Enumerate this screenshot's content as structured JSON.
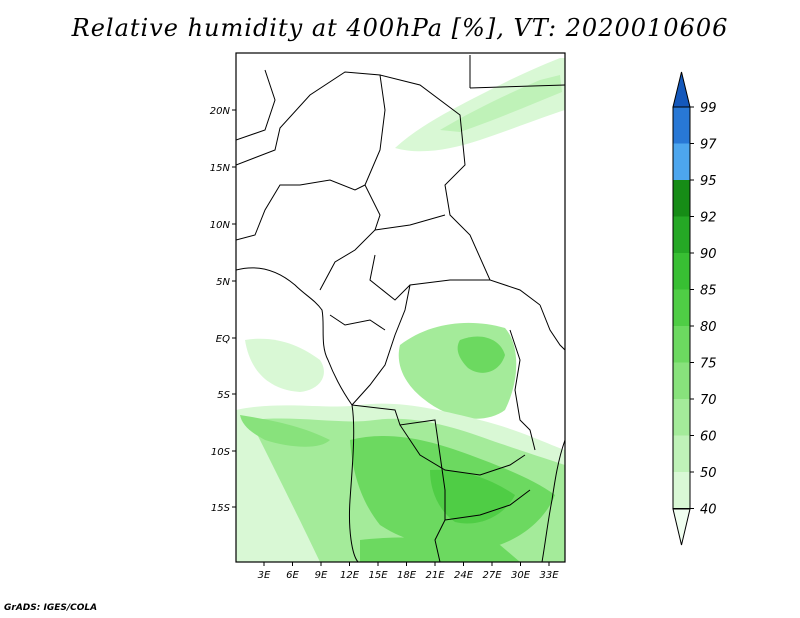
{
  "title": "Relative humidity at 400hPa [%], VT: 2020010606",
  "credit": "GrADS: IGES/COLA",
  "map": {
    "lat_labels": [
      "20N",
      "15N",
      "10N",
      "5N",
      "EQ",
      "5S",
      "10S",
      "15S"
    ],
    "lon_labels": [
      "3E",
      "6E",
      "9E",
      "12E",
      "15E",
      "18E",
      "21E",
      "24E",
      "27E",
      "30E",
      "33E"
    ]
  },
  "colorbar": {
    "levels": [
      "40",
      "50",
      "60",
      "70",
      "75",
      "80",
      "85",
      "90",
      "92",
      "95",
      "97",
      "99"
    ],
    "colors": [
      "#f0fef0",
      "#d9f8d5",
      "#bff2b8",
      "#a4eb9a",
      "#88e27c",
      "#6cd960",
      "#4fcd45",
      "#38bf33",
      "#25a825",
      "#168c16",
      "#4da6ee",
      "#2878d6",
      "#1458bb"
    ]
  }
}
